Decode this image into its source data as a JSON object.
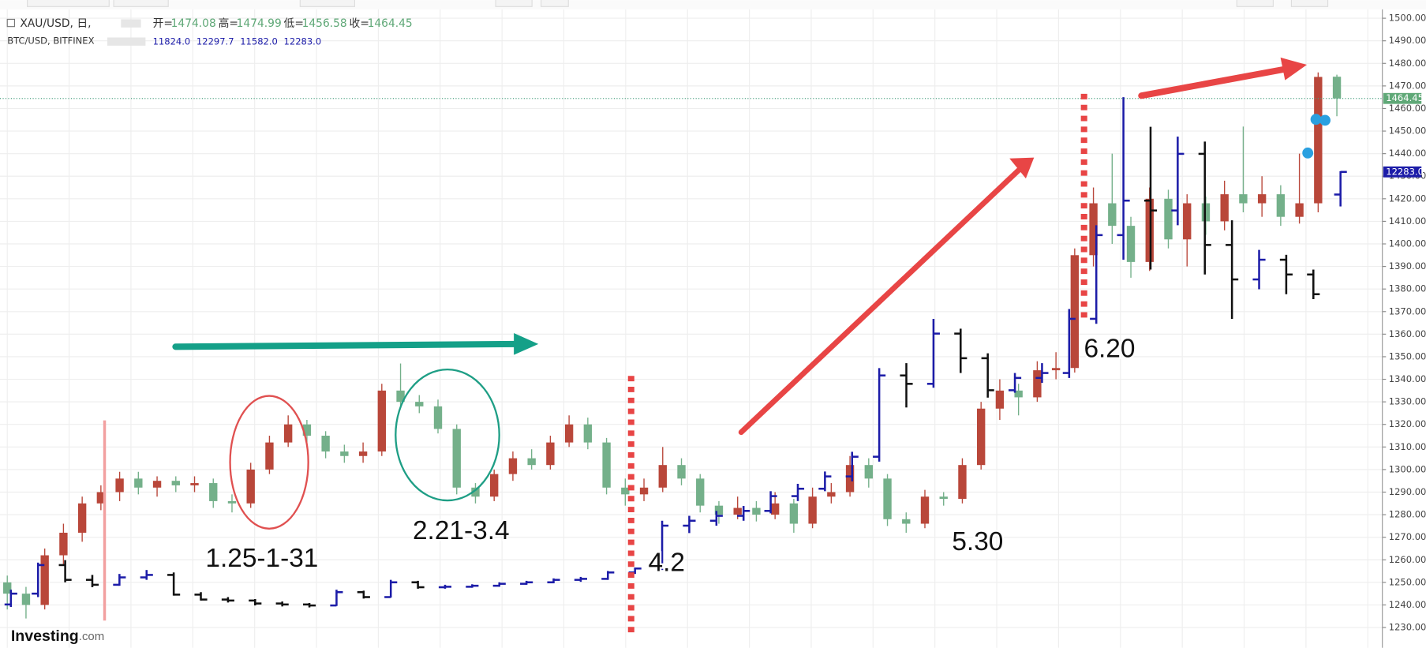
{
  "chart_data": {
    "type": "candlestick",
    "ylim": [
      1221,
      1508
    ],
    "yticks": [
      {
        "value": 1230,
        "label": "1230.00"
      },
      {
        "value": 1240,
        "label": "1240.00"
      },
      {
        "value": 1250,
        "label": "1250.00"
      },
      {
        "value": 1260,
        "label": "1260.00"
      },
      {
        "value": 1270,
        "label": "1270.00"
      },
      {
        "value": 1280,
        "label": "1280.00"
      },
      {
        "value": 1290,
        "label": "1290.00"
      },
      {
        "value": 1300,
        "label": "1300.00"
      },
      {
        "value": 1310,
        "label": "1310.00"
      },
      {
        "value": 1320,
        "label": "1320.00"
      },
      {
        "value": 1330,
        "label": "1330.00"
      },
      {
        "value": 1340,
        "label": "1340.00"
      },
      {
        "value": 1350,
        "label": "1350.00"
      },
      {
        "value": 1360,
        "label": "1360.00"
      },
      {
        "value": 1370,
        "label": "1370.00"
      },
      {
        "value": 1380,
        "label": "1380.00"
      },
      {
        "value": 1390,
        "label": "1390.00"
      },
      {
        "value": 1400,
        "label": "1400.00"
      },
      {
        "value": 1410,
        "label": "1410.00"
      },
      {
        "value": 1420,
        "label": "1420.00"
      },
      {
        "value": 1430,
        "label": "1430.00"
      },
      {
        "value": 1440,
        "label": "1440.00"
      },
      {
        "value": 1450,
        "label": "1450.00"
      },
      {
        "value": 1460,
        "label": "1460.00"
      },
      {
        "value": 1470,
        "label": "1470.00"
      },
      {
        "value": 1480,
        "label": "1480.00"
      },
      {
        "value": 1490,
        "label": "1490.00"
      },
      {
        "value": 1500,
        "label": "1500.00"
      }
    ],
    "y2lim": [
      2620,
      15770
    ],
    "grid": true,
    "ohlc_labels": [
      "开=",
      "高=",
      "低=",
      "收="
    ],
    "series": [
      {
        "name": "XAU/USD, 日,",
        "up_color": "#b9473a",
        "down_color": "#74b08a",
        "ohlc": [
          [
            1250,
            1253,
            1238,
            1245
          ],
          [
            1245,
            1248,
            1234,
            1240
          ],
          [
            1240,
            1265,
            1238,
            1262
          ],
          [
            1262,
            1276,
            1258,
            1272
          ],
          [
            1272,
            1288,
            1268,
            1285
          ],
          [
            1285,
            1293,
            1282,
            1290
          ],
          [
            1290,
            1299,
            1286,
            1296
          ],
          [
            1296,
            1299,
            1289,
            1292
          ],
          [
            1292,
            1297,
            1288,
            1295
          ],
          [
            1295,
            1297,
            1290,
            1293
          ],
          [
            1293,
            1297,
            1290,
            1294
          ],
          [
            1294,
            1296,
            1283,
            1286
          ],
          [
            1286,
            1289,
            1281,
            1285
          ],
          [
            1285,
            1303,
            1283,
            1300
          ],
          [
            1300,
            1315,
            1298,
            1312
          ],
          [
            1312,
            1324,
            1310,
            1320
          ],
          [
            1320,
            1322,
            1312,
            1315
          ],
          [
            1315,
            1317,
            1305,
            1308
          ],
          [
            1308,
            1311,
            1303,
            1306
          ],
          [
            1306,
            1312,
            1303,
            1308
          ],
          [
            1308,
            1338,
            1306,
            1335
          ],
          [
            1335,
            1347,
            1328,
            1330
          ],
          [
            1330,
            1333,
            1325,
            1328
          ],
          [
            1328,
            1331,
            1316,
            1318
          ],
          [
            1318,
            1320,
            1289,
            1292
          ],
          [
            1292,
            1294,
            1285,
            1288
          ],
          [
            1288,
            1300,
            1286,
            1298
          ],
          [
            1298,
            1308,
            1295,
            1305
          ],
          [
            1305,
            1309,
            1300,
            1302
          ],
          [
            1302,
            1315,
            1300,
            1312
          ],
          [
            1312,
            1324,
            1310,
            1320
          ],
          [
            1320,
            1323,
            1309,
            1312
          ],
          [
            1312,
            1314,
            1289,
            1292
          ],
          [
            1292,
            1296,
            1284,
            1289
          ],
          [
            1289,
            1296,
            1286,
            1292
          ],
          [
            1292,
            1310,
            1290,
            1302
          ],
          [
            1302,
            1305,
            1293,
            1296
          ],
          [
            1296,
            1298,
            1281,
            1284
          ],
          [
            1284,
            1286,
            1276,
            1280
          ],
          [
            1280,
            1288,
            1278,
            1283
          ],
          [
            1283,
            1286,
            1277,
            1280
          ],
          [
            1280,
            1290,
            1278,
            1285
          ],
          [
            1285,
            1287,
            1272,
            1276
          ],
          [
            1276,
            1292,
            1274,
            1288
          ],
          [
            1288,
            1294,
            1285,
            1290
          ],
          [
            1290,
            1306,
            1288,
            1302
          ],
          [
            1302,
            1305,
            1292,
            1296
          ],
          [
            1296,
            1298,
            1275,
            1278
          ],
          [
            1278,
            1281,
            1272,
            1276
          ],
          [
            1276,
            1291,
            1274,
            1288
          ],
          [
            1288,
            1290,
            1284,
            1287
          ],
          [
            1287,
            1305,
            1285,
            1302
          ],
          [
            1302,
            1330,
            1300,
            1327
          ],
          [
            1327,
            1340,
            1322,
            1335
          ],
          [
            1335,
            1338,
            1324,
            1332
          ],
          [
            1332,
            1348,
            1330,
            1344
          ],
          [
            1344,
            1352,
            1340,
            1345
          ],
          [
            1345,
            1398,
            1343,
            1395
          ],
          [
            1395,
            1425,
            1390,
            1418
          ],
          [
            1418,
            1440,
            1400,
            1408
          ],
          [
            1408,
            1412,
            1385,
            1392
          ],
          [
            1392,
            1425,
            1388,
            1420
          ],
          [
            1420,
            1424,
            1398,
            1402
          ],
          [
            1402,
            1422,
            1390,
            1418
          ],
          [
            1418,
            1421,
            1404,
            1410
          ],
          [
            1410,
            1428,
            1406,
            1422
          ],
          [
            1422,
            1452,
            1414,
            1418
          ],
          [
            1418,
            1430,
            1412,
            1422
          ],
          [
            1422,
            1426,
            1408,
            1412
          ],
          [
            1412,
            1440,
            1409,
            1418
          ],
          [
            1418,
            1476,
            1414,
            1474
          ],
          [
            1474.08,
            1474.99,
            1456.58,
            1464.45
          ]
        ]
      },
      {
        "name": "BTC/USD, BITFINEX",
        "axis": "y2",
        "up_color": "#1c1ca8",
        "down_color": "#111111",
        "last_labels": [
          "11824.0",
          "12297.7",
          "11582.0",
          "12283.0"
        ],
        "ohlc": [
          [
            3500,
            3800,
            3450,
            3720
          ],
          [
            3720,
            4350,
            3650,
            4300
          ],
          [
            4300,
            4400,
            3950,
            4000
          ],
          [
            4000,
            4100,
            3850,
            3900
          ],
          [
            3900,
            4120,
            3880,
            4050
          ],
          [
            4050,
            4200,
            4000,
            4100
          ],
          [
            4100,
            4150,
            3680,
            3700
          ],
          [
            3700,
            3750,
            3580,
            3600
          ],
          [
            3600,
            3650,
            3540,
            3580
          ],
          [
            3580,
            3610,
            3480,
            3520
          ],
          [
            3520,
            3560,
            3460,
            3500
          ],
          [
            3500,
            3530,
            3440,
            3480
          ],
          [
            3480,
            3800,
            3470,
            3750
          ],
          [
            3750,
            3780,
            3620,
            3650
          ],
          [
            3650,
            4000,
            3640,
            3950
          ],
          [
            3950,
            3980,
            3820,
            3850
          ],
          [
            3850,
            3900,
            3820,
            3860
          ],
          [
            3860,
            3910,
            3840,
            3880
          ],
          [
            3880,
            3950,
            3860,
            3920
          ],
          [
            3920,
            3980,
            3900,
            3950
          ],
          [
            3950,
            4030,
            3930,
            4000
          ],
          [
            4000,
            4060,
            3960,
            4020
          ],
          [
            4020,
            4180,
            4000,
            4150
          ],
          [
            4150,
            4250,
            4120,
            4230
          ],
          [
            4230,
            5200,
            4200,
            5100
          ],
          [
            5100,
            5300,
            4950,
            5200
          ],
          [
            5200,
            5400,
            5100,
            5300
          ],
          [
            5300,
            5500,
            5200,
            5400
          ],
          [
            5400,
            5800,
            5350,
            5700
          ],
          [
            5700,
            5950,
            5600,
            5850
          ],
          [
            5850,
            6200,
            5800,
            6100
          ],
          [
            6100,
            6600,
            6000,
            6500
          ],
          [
            6500,
            8300,
            6400,
            8150
          ],
          [
            8150,
            8400,
            7500,
            7980
          ],
          [
            7980,
            9300,
            7900,
            9000
          ],
          [
            9000,
            9100,
            8200,
            8500
          ],
          [
            8500,
            8600,
            7700,
            7850
          ],
          [
            7850,
            8200,
            7800,
            8100
          ],
          [
            8100,
            8400,
            8000,
            8200
          ],
          [
            8200,
            9500,
            8100,
            9300
          ],
          [
            9300,
            11200,
            9200,
            11000
          ],
          [
            11000,
            13800,
            10500,
            11700
          ],
          [
            11700,
            13200,
            10300,
            11500
          ],
          [
            11500,
            13000,
            11200,
            12650
          ],
          [
            12650,
            12900,
            10200,
            10800
          ],
          [
            10800,
            11300,
            9300,
            10100
          ],
          [
            10100,
            10700,
            9900,
            10500
          ],
          [
            10500,
            10600,
            9800,
            10200
          ],
          [
            10200,
            10300,
            9700,
            9800
          ],
          [
            11824.0,
            12297.7,
            11582.0,
            12283.0
          ]
        ]
      }
    ],
    "annotations": [
      "1.25-1-31",
      "2.21-3.4",
      "4.2",
      "5.30",
      "6.20"
    ],
    "logo": [
      "Investing",
      ".com"
    ]
  }
}
